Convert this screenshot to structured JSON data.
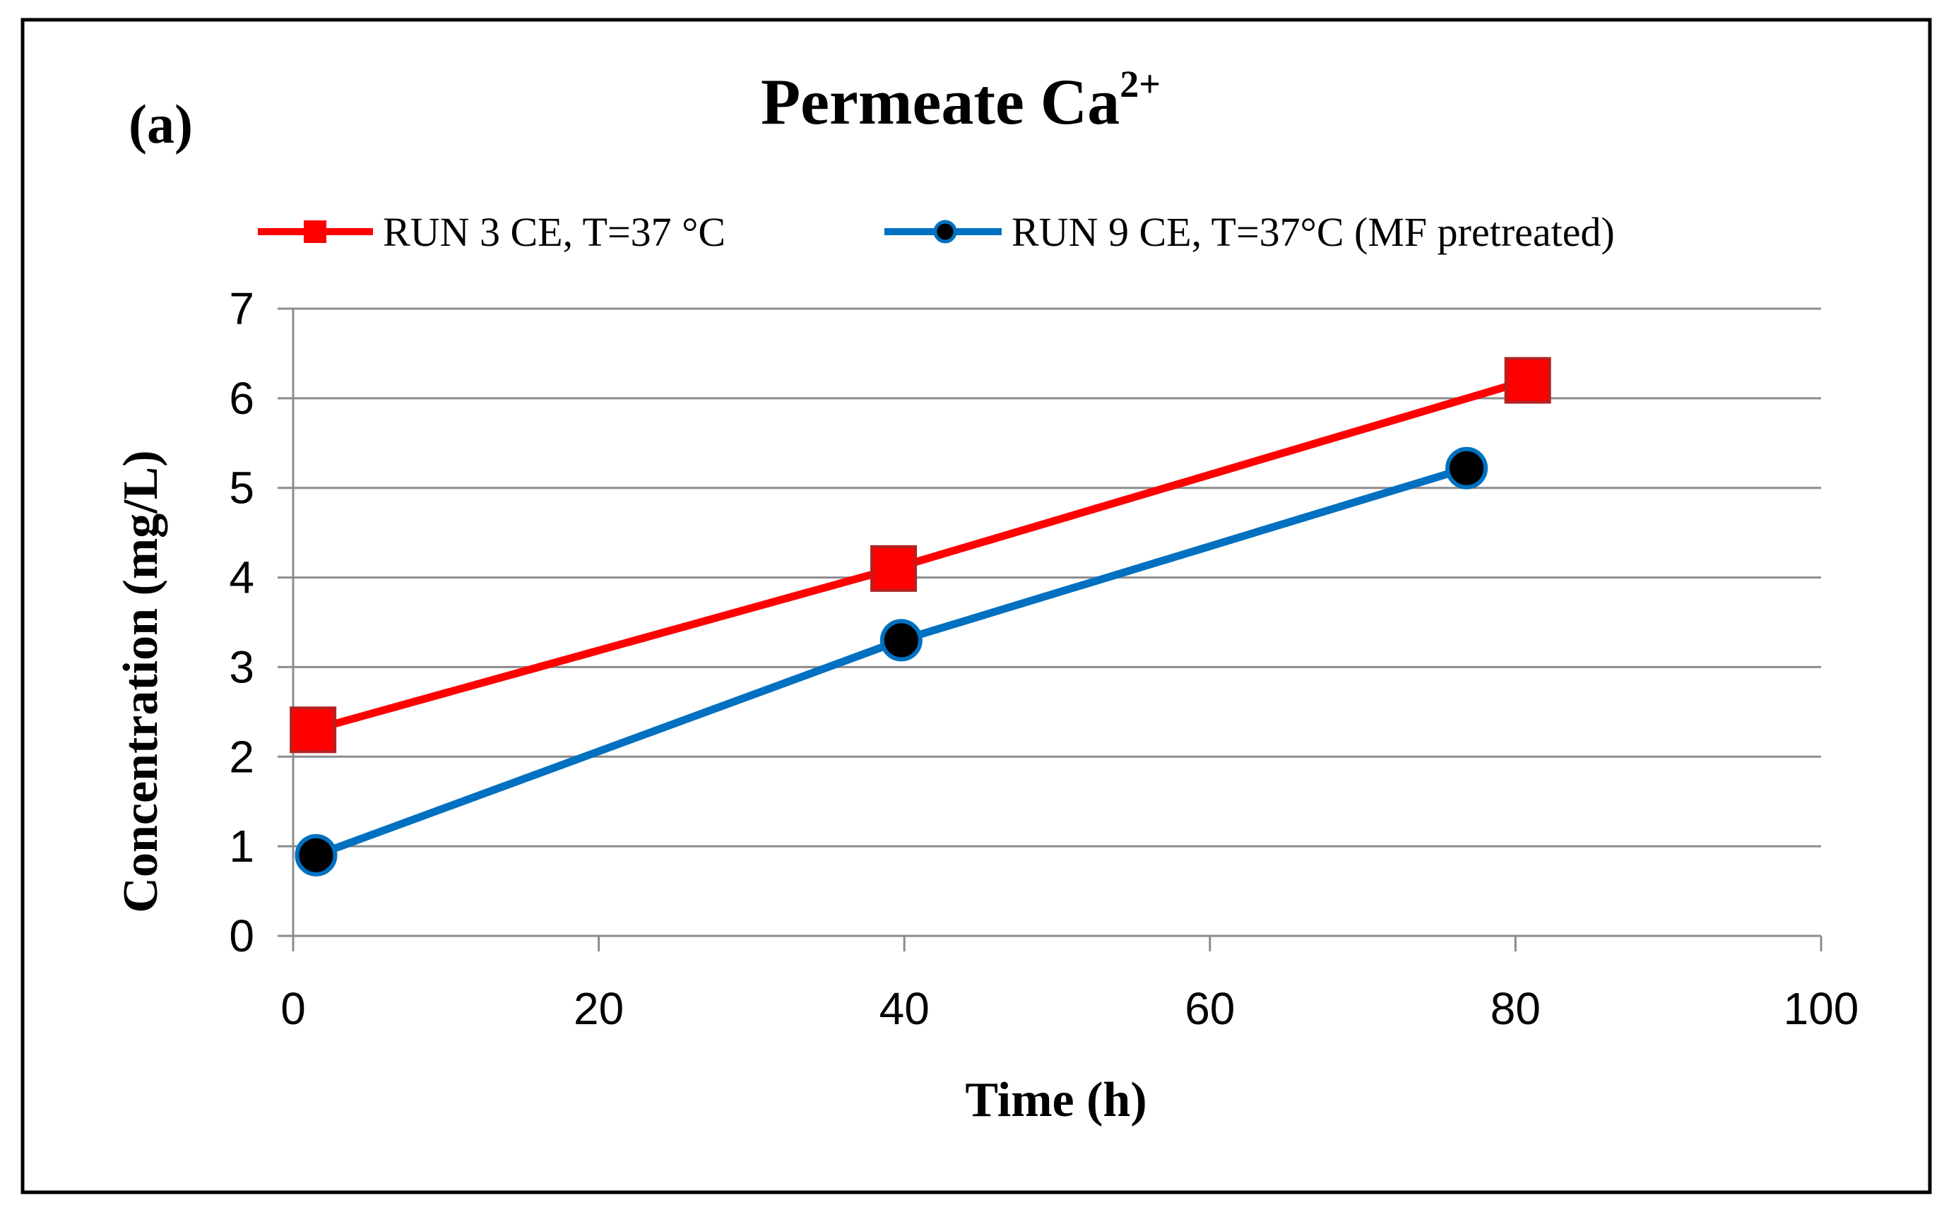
{
  "panel_label": "(a)",
  "chart_data": {
    "type": "line",
    "title": "Permeate Ca",
    "title_superscript": "2+",
    "xlabel": "Time (h)",
    "ylabel": "Concentration (mg/L)",
    "xlim": [
      0,
      100
    ],
    "ylim": [
      0,
      7
    ],
    "xticks": [
      0,
      20,
      40,
      60,
      80,
      100
    ],
    "yticks": [
      0,
      1,
      2,
      3,
      4,
      5,
      6,
      7
    ],
    "grid": "horizontal",
    "legend_position": "top",
    "series": [
      {
        "name": "RUN 3 CE, T=37 °C",
        "color": "#ff0000",
        "marker": "square",
        "x": [
          1.3,
          39.3,
          80.8
        ],
        "y": [
          2.3,
          4.1,
          6.2
        ]
      },
      {
        "name": "RUN 9 CE, T=37°C (MF pretreated)",
        "color": "#0070c0",
        "marker": "circle",
        "x": [
          1.5,
          39.8,
          76.8
        ],
        "y": [
          0.9,
          3.3,
          5.22
        ]
      }
    ]
  }
}
